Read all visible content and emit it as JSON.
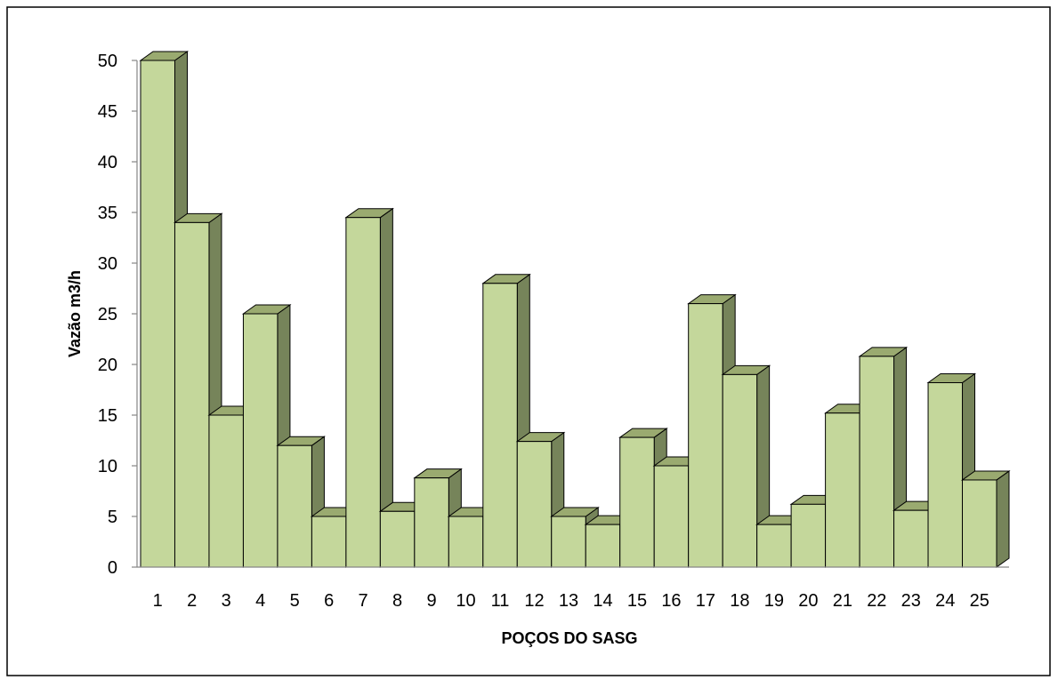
{
  "chart_data": {
    "type": "bar",
    "title": "",
    "xlabel": "POÇOS DO SASG",
    "ylabel": "Vazão m3/h",
    "categories": [
      "1",
      "2",
      "3",
      "4",
      "5",
      "6",
      "7",
      "8",
      "9",
      "10",
      "11",
      "12",
      "13",
      "14",
      "15",
      "16",
      "17",
      "18",
      "19",
      "20",
      "21",
      "22",
      "23",
      "24",
      "25"
    ],
    "values": [
      50,
      34,
      15,
      25,
      12,
      5,
      34.5,
      5.5,
      8.8,
      5,
      28,
      12.4,
      5,
      4.2,
      12.8,
      10,
      26,
      19,
      4.2,
      6.2,
      15.2,
      20.8,
      5.6,
      18.2,
      8.6
    ],
    "ylim": [
      0,
      50
    ],
    "yticks": [
      "0",
      "5",
      "10",
      "15",
      "20",
      "25",
      "30",
      "35",
      "40",
      "45",
      "50"
    ],
    "grid": false,
    "legend": "none",
    "style": "3d-bar",
    "colors": {
      "bar_face": "#c4d79b",
      "bar_side": "#76845a",
      "bar_top": "#9aaa70",
      "bar_stroke": "#000000",
      "border": "#000000"
    }
  }
}
